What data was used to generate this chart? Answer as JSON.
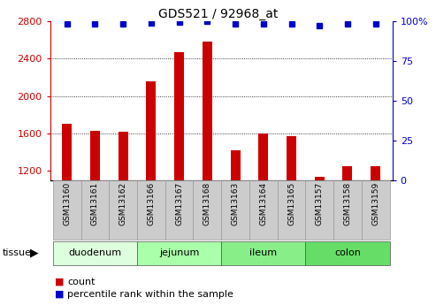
{
  "title": "GDS521 / 92968_at",
  "samples": [
    "GSM13160",
    "GSM13161",
    "GSM13162",
    "GSM13166",
    "GSM13167",
    "GSM13168",
    "GSM13163",
    "GSM13164",
    "GSM13165",
    "GSM13157",
    "GSM13158",
    "GSM13159"
  ],
  "bar_values": [
    1700,
    1625,
    1618,
    2160,
    2470,
    2580,
    1420,
    1600,
    1570,
    1130,
    1250,
    1250
  ],
  "percentile_values": [
    98.5,
    98.5,
    98.5,
    99.2,
    99.5,
    100,
    98.5,
    98.5,
    98.5,
    97.5,
    98.5,
    98.5
  ],
  "ylim": [
    1100,
    2800
  ],
  "y2lim": [
    0,
    100
  ],
  "yticks": [
    1200,
    1600,
    2000,
    2400,
    2800
  ],
  "y2ticks": [
    0,
    25,
    50,
    75,
    100
  ],
  "bar_color": "#CC0000",
  "dot_color": "#0000CC",
  "tissue_groups": [
    {
      "label": "duodenum",
      "indices": [
        0,
        1,
        2
      ],
      "color": "#DDFFDD"
    },
    {
      "label": "jejunum",
      "indices": [
        3,
        4,
        5
      ],
      "color": "#AAFFAA"
    },
    {
      "label": "ileum",
      "indices": [
        6,
        7,
        8
      ],
      "color": "#88EE88"
    },
    {
      "label": "colon",
      "indices": [
        9,
        10,
        11
      ],
      "color": "#66DD66"
    }
  ],
  "legend_count_color": "#CC0000",
  "legend_pct_color": "#0000CC",
  "sample_box_color": "#CCCCCC",
  "grid_yticks": [
    1600,
    2000,
    2400
  ],
  "bar_width": 0.35
}
